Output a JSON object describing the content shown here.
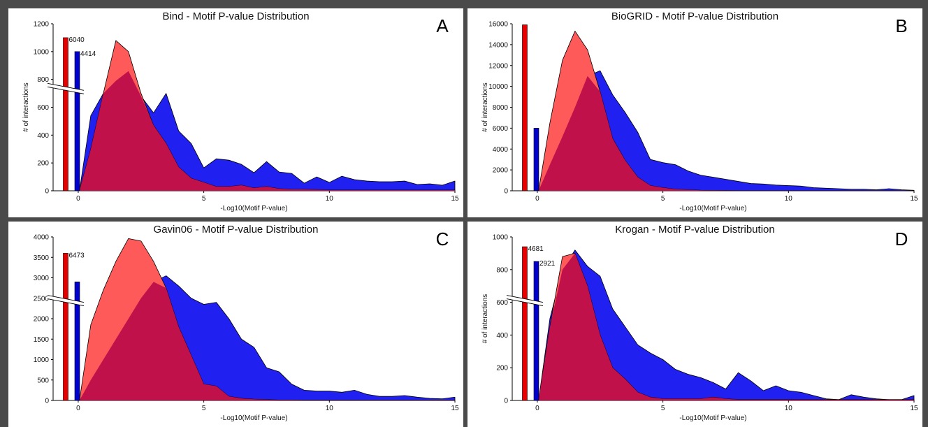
{
  "figure": {
    "colors": {
      "selected": "#ff5a5a",
      "background_dist": "#2020f0",
      "overlap": "#c0114a",
      "bar_red": "#e60000",
      "bar_blue": "#0000cc"
    }
  },
  "chart_data": [
    {
      "type": "area",
      "title": "Bind - Motif P-value Distribution",
      "panel_letter": "A",
      "xlabel": "-Log10(Motif P-value)",
      "ylabel": "# of interactions",
      "xlim": [
        -1,
        15
      ],
      "ylim": [
        0,
        1200
      ],
      "xticks": [
        0,
        5,
        10,
        15
      ],
      "yticks": [
        0,
        200,
        400,
        600,
        800,
        1000,
        1200
      ],
      "axis_break": true,
      "zero_bars": [
        {
          "color": "red",
          "value": 1100,
          "label": "6040"
        },
        {
          "color": "blue",
          "value": 1000,
          "label": "4414"
        }
      ],
      "x": [
        0.05,
        0.5,
        1,
        1.5,
        2,
        2.5,
        3,
        3.5,
        4,
        4.5,
        5,
        5.5,
        6,
        6.5,
        7,
        7.5,
        8,
        8.5,
        9,
        9.5,
        10,
        10.5,
        11,
        11.5,
        12,
        12.5,
        13,
        13.5,
        14,
        14.5,
        15
      ],
      "series": [
        {
          "color": "blue",
          "values": [
            0,
            540,
            700,
            790,
            860,
            680,
            560,
            700,
            430,
            340,
            165,
            230,
            220,
            190,
            130,
            210,
            135,
            125,
            55,
            100,
            60,
            105,
            80,
            70,
            65,
            65,
            70,
            45,
            50,
            40,
            70
          ]
        },
        {
          "color": "red",
          "values": [
            0,
            300,
            700,
            1080,
            1000,
            700,
            470,
            340,
            170,
            90,
            60,
            30,
            30,
            40,
            20,
            30,
            15,
            10,
            10,
            8,
            5,
            5,
            5,
            5,
            5,
            5,
            5,
            5,
            5,
            5,
            5
          ]
        }
      ]
    },
    {
      "type": "area",
      "title": "BioGRID - Motif P-value Distribution",
      "panel_letter": "B",
      "xlabel": "-Log10(Motif P-value)",
      "ylabel": "# of interactions",
      "xlim": [
        -1,
        15
      ],
      "ylim": [
        0,
        16000
      ],
      "xticks": [
        0,
        5,
        10,
        15
      ],
      "yticks": [
        0,
        2000,
        4000,
        6000,
        8000,
        10000,
        12000,
        14000,
        16000
      ],
      "axis_break": false,
      "zero_bars": [
        {
          "color": "red",
          "value": 15900,
          "label": ""
        },
        {
          "color": "blue",
          "value": 6000,
          "label": ""
        }
      ],
      "x": [
        0.05,
        0.5,
        1,
        1.5,
        2,
        2.5,
        3,
        3.5,
        4,
        4.5,
        5,
        5.5,
        6,
        6.5,
        7,
        7.5,
        8,
        8.5,
        9,
        9.5,
        10,
        10.5,
        11,
        11.5,
        12,
        12.5,
        13,
        13.5,
        14,
        14.5,
        15
      ],
      "series": [
        {
          "color": "blue",
          "values": [
            0,
            2500,
            5200,
            8000,
            11000,
            11500,
            9200,
            7500,
            5600,
            3000,
            2700,
            2500,
            1900,
            1500,
            1300,
            1100,
            900,
            700,
            650,
            550,
            500,
            450,
            300,
            250,
            200,
            150,
            150,
            100,
            200,
            100,
            50
          ]
        },
        {
          "color": "red",
          "values": [
            0,
            6500,
            12500,
            15300,
            13500,
            9500,
            5000,
            2900,
            1300,
            500,
            300,
            150,
            100,
            50,
            30,
            20,
            10,
            5,
            5,
            5,
            5,
            5,
            5,
            5,
            5,
            5,
            5,
            5,
            5,
            5,
            5
          ]
        }
      ]
    },
    {
      "type": "area",
      "title": "Gavin06 - Motif P-value Distribution",
      "panel_letter": "C",
      "xlabel": "-Log10(Motif P-value)",
      "ylabel": "",
      "xlim": [
        -1,
        15
      ],
      "ylim": [
        0,
        4000
      ],
      "xticks": [
        0,
        5,
        10,
        15
      ],
      "yticks": [
        0,
        500,
        1000,
        1500,
        2000,
        2500,
        3000,
        3500,
        4000
      ],
      "axis_break": true,
      "zero_bars": [
        {
          "color": "red",
          "value": 3600,
          "label": "6473"
        },
        {
          "color": "blue",
          "value": 2900,
          "label": ""
        }
      ],
      "x": [
        0.05,
        0.5,
        1,
        1.5,
        2,
        2.5,
        3,
        3.5,
        4,
        4.5,
        5,
        5.5,
        6,
        6.5,
        7,
        7.5,
        8,
        8.5,
        9,
        9.5,
        10,
        10.5,
        11,
        11.5,
        12,
        12.5,
        13,
        13.5,
        14,
        14.5,
        15
      ],
      "series": [
        {
          "color": "blue",
          "values": [
            0,
            500,
            1000,
            1500,
            2000,
            2500,
            2900,
            3050,
            2800,
            2500,
            2350,
            2400,
            2000,
            1500,
            1300,
            800,
            700,
            400,
            250,
            230,
            230,
            200,
            250,
            150,
            100,
            100,
            120,
            80,
            50,
            40,
            80
          ]
        },
        {
          "color": "red",
          "values": [
            0,
            1850,
            2700,
            3400,
            3960,
            3900,
            3400,
            2750,
            1800,
            1100,
            400,
            350,
            100,
            50,
            30,
            20,
            10,
            10,
            5,
            5,
            5,
            5,
            5,
            5,
            5,
            5,
            5,
            5,
            5,
            5,
            5
          ]
        }
      ]
    },
    {
      "type": "area",
      "title": "Krogan - Motif P-value Distribution",
      "panel_letter": "D",
      "xlabel": "-Log10(Motif P-value)",
      "ylabel": "# of interactions",
      "xlim": [
        -1,
        15
      ],
      "ylim": [
        0,
        1000
      ],
      "xticks": [
        0,
        5,
        10,
        15
      ],
      "yticks": [
        0,
        200,
        400,
        600,
        800,
        1000
      ],
      "axis_break": true,
      "zero_bars": [
        {
          "color": "red",
          "value": 940,
          "label": "4681"
        },
        {
          "color": "blue",
          "value": 850,
          "label": "2921"
        }
      ],
      "x": [
        0.05,
        0.5,
        1,
        1.5,
        2,
        2.5,
        3,
        3.5,
        4,
        4.5,
        5,
        5.5,
        6,
        6.5,
        7,
        7.5,
        8,
        8.5,
        9,
        9.5,
        10,
        10.5,
        11,
        11.5,
        12,
        12.5,
        13,
        13.5,
        14,
        14.5,
        15
      ],
      "series": [
        {
          "color": "blue",
          "values": [
            0,
            500,
            800,
            920,
            820,
            760,
            560,
            450,
            340,
            290,
            250,
            190,
            160,
            140,
            110,
            70,
            170,
            120,
            60,
            90,
            60,
            50,
            30,
            10,
            5,
            35,
            20,
            10,
            5,
            5,
            30
          ]
        },
        {
          "color": "red",
          "values": [
            0,
            450,
            880,
            900,
            700,
            400,
            200,
            130,
            50,
            20,
            10,
            10,
            10,
            10,
            20,
            10,
            5,
            5,
            5,
            5,
            5,
            5,
            5,
            5,
            5,
            5,
            5,
            5,
            5,
            5,
            5
          ]
        }
      ]
    }
  ]
}
